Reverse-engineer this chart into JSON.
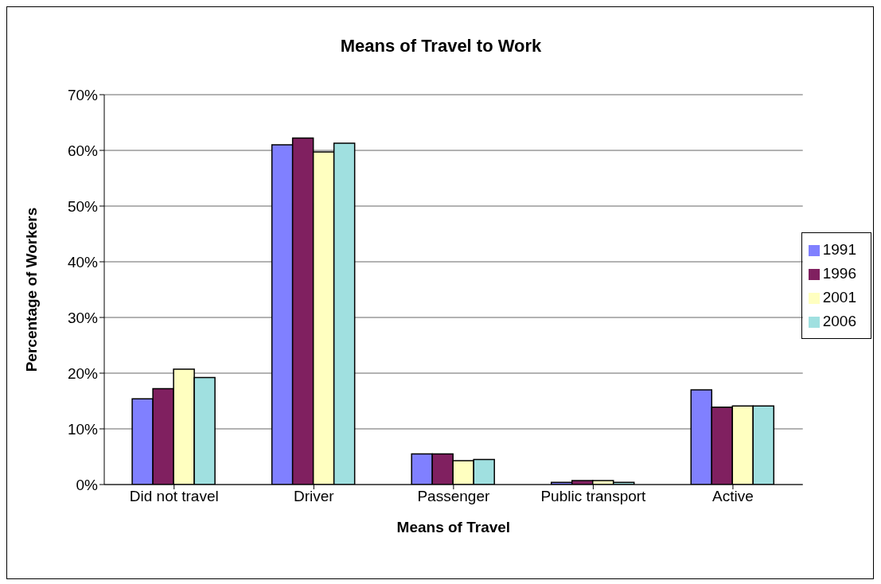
{
  "chart_data": {
    "type": "bar",
    "title": "Means of Travel to Work",
    "xlabel": "Means of Travel",
    "ylabel": "Percentage of Workers",
    "categories": [
      "Did not travel",
      "Driver",
      "Passenger",
      "Public transport",
      "Active"
    ],
    "series": [
      {
        "name": "1991",
        "color": "#8080ff",
        "values": [
          15.4,
          61.0,
          5.5,
          0.4,
          17.0
        ]
      },
      {
        "name": "1996",
        "color": "#802060",
        "values": [
          17.2,
          62.2,
          5.5,
          0.7,
          13.9
        ]
      },
      {
        "name": "2001",
        "color": "#ffffc0",
        "values": [
          20.7,
          59.7,
          4.3,
          0.7,
          14.1
        ]
      },
      {
        "name": "2006",
        "color": "#a0e0e0",
        "values": [
          19.2,
          61.3,
          4.5,
          0.4,
          14.1
        ]
      }
    ],
    "ylim": [
      0,
      70
    ],
    "yticks": [
      {
        "value": 0,
        "label": "0%"
      },
      {
        "value": 10,
        "label": "10%"
      },
      {
        "value": 20,
        "label": "20%"
      },
      {
        "value": 30,
        "label": "30%"
      },
      {
        "value": 40,
        "label": "40%"
      },
      {
        "value": 50,
        "label": "50%"
      },
      {
        "value": 60,
        "label": "60%"
      },
      {
        "value": 70,
        "label": "70%"
      }
    ],
    "grid": "y",
    "legend": "right"
  }
}
